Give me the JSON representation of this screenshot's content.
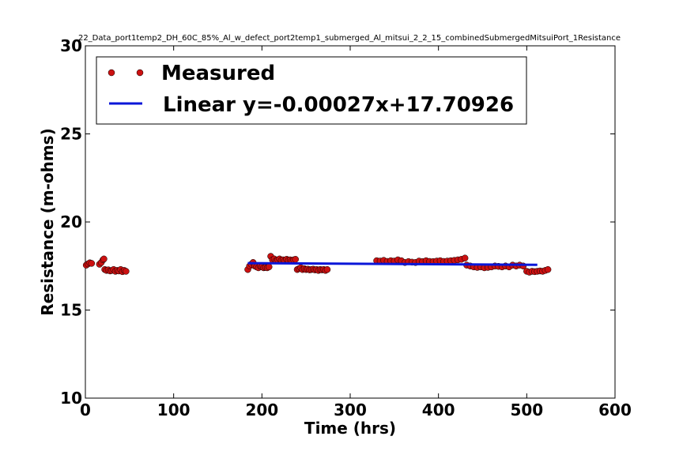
{
  "chart_data": {
    "type": "scatter",
    "title": "22_Data_port1temp2_DH_60C_85%_Al_w_defect_port2temp1_submerged_Al_mitsui_2_2_15_combinedSubmergedMitsuiPort_1Resistance",
    "xlabel": "Time (hrs)",
    "ylabel": "Resistance (m-ohms)",
    "xlim": [
      0,
      600
    ],
    "ylim": [
      10,
      30
    ],
    "xticks": [
      0,
      100,
      200,
      300,
      400,
      500,
      600
    ],
    "xtick_labels": [
      "0",
      "100",
      "200",
      "300",
      "400",
      "500",
      "600"
    ],
    "yticks": [
      10,
      15,
      20,
      25,
      30
    ],
    "ytick_labels": [
      "10",
      "15",
      "20",
      "25",
      "30"
    ],
    "grid": false,
    "legend_position": "top-left",
    "series": [
      {
        "name": "Measured",
        "kind": "markers",
        "color": "#cc1111",
        "x": [
          1,
          3,
          5,
          7,
          16,
          18,
          20,
          21,
          22,
          24,
          26,
          28,
          30,
          32,
          34,
          36,
          38,
          40,
          42,
          44,
          46,
          184,
          186,
          188,
          190,
          192,
          194,
          196,
          198,
          200,
          202,
          204,
          206,
          208,
          210,
          212,
          214,
          216,
          218,
          220,
          222,
          224,
          226,
          228,
          230,
          232,
          234,
          236,
          238,
          240,
          242,
          244,
          246,
          248,
          250,
          252,
          254,
          256,
          258,
          260,
          262,
          264,
          266,
          268,
          270,
          272,
          274,
          330,
          334,
          338,
          342,
          346,
          350,
          354,
          358,
          362,
          366,
          370,
          374,
          378,
          382,
          386,
          390,
          394,
          398,
          402,
          406,
          410,
          414,
          418,
          422,
          426,
          430,
          432,
          436,
          440,
          444,
          448,
          452,
          456,
          460,
          464,
          468,
          472,
          476,
          480,
          484,
          488,
          492,
          496,
          500,
          503,
          506,
          509,
          512,
          515,
          518,
          521,
          524
        ],
        "y": [
          17.55,
          17.62,
          17.68,
          17.65,
          17.6,
          17.7,
          17.85,
          17.9,
          17.3,
          17.25,
          17.28,
          17.22,
          17.25,
          17.3,
          17.2,
          17.25,
          17.22,
          17.3,
          17.18,
          17.25,
          17.2,
          17.3,
          17.5,
          17.6,
          17.7,
          17.5,
          17.45,
          17.4,
          17.5,
          17.45,
          17.4,
          17.42,
          17.4,
          17.45,
          18.05,
          17.85,
          17.9,
          17.8,
          17.85,
          17.9,
          17.82,
          17.85,
          17.8,
          17.88,
          17.82,
          17.85,
          17.8,
          17.85,
          17.88,
          17.3,
          17.35,
          17.4,
          17.3,
          17.35,
          17.3,
          17.32,
          17.28,
          17.3,
          17.32,
          17.28,
          17.3,
          17.25,
          17.3,
          17.28,
          17.3,
          17.25,
          17.3,
          17.8,
          17.78,
          17.82,
          17.76,
          17.8,
          17.78,
          17.85,
          17.8,
          17.7,
          17.75,
          17.72,
          17.7,
          17.78,
          17.75,
          17.8,
          17.76,
          17.75,
          17.78,
          17.8,
          17.76,
          17.78,
          17.8,
          17.82,
          17.85,
          17.88,
          17.95,
          17.55,
          17.5,
          17.45,
          17.42,
          17.45,
          17.4,
          17.42,
          17.45,
          17.5,
          17.48,
          17.45,
          17.5,
          17.45,
          17.55,
          17.5,
          17.55,
          17.5,
          17.2,
          17.15,
          17.2,
          17.18,
          17.2,
          17.22,
          17.2,
          17.25,
          17.3
        ]
      },
      {
        "name": "Linear y=-0.00027x+17.70926",
        "kind": "line",
        "color": "#0a16d8",
        "x": [
          184,
          512
        ],
        "y": [
          17.66,
          17.57
        ]
      }
    ]
  }
}
